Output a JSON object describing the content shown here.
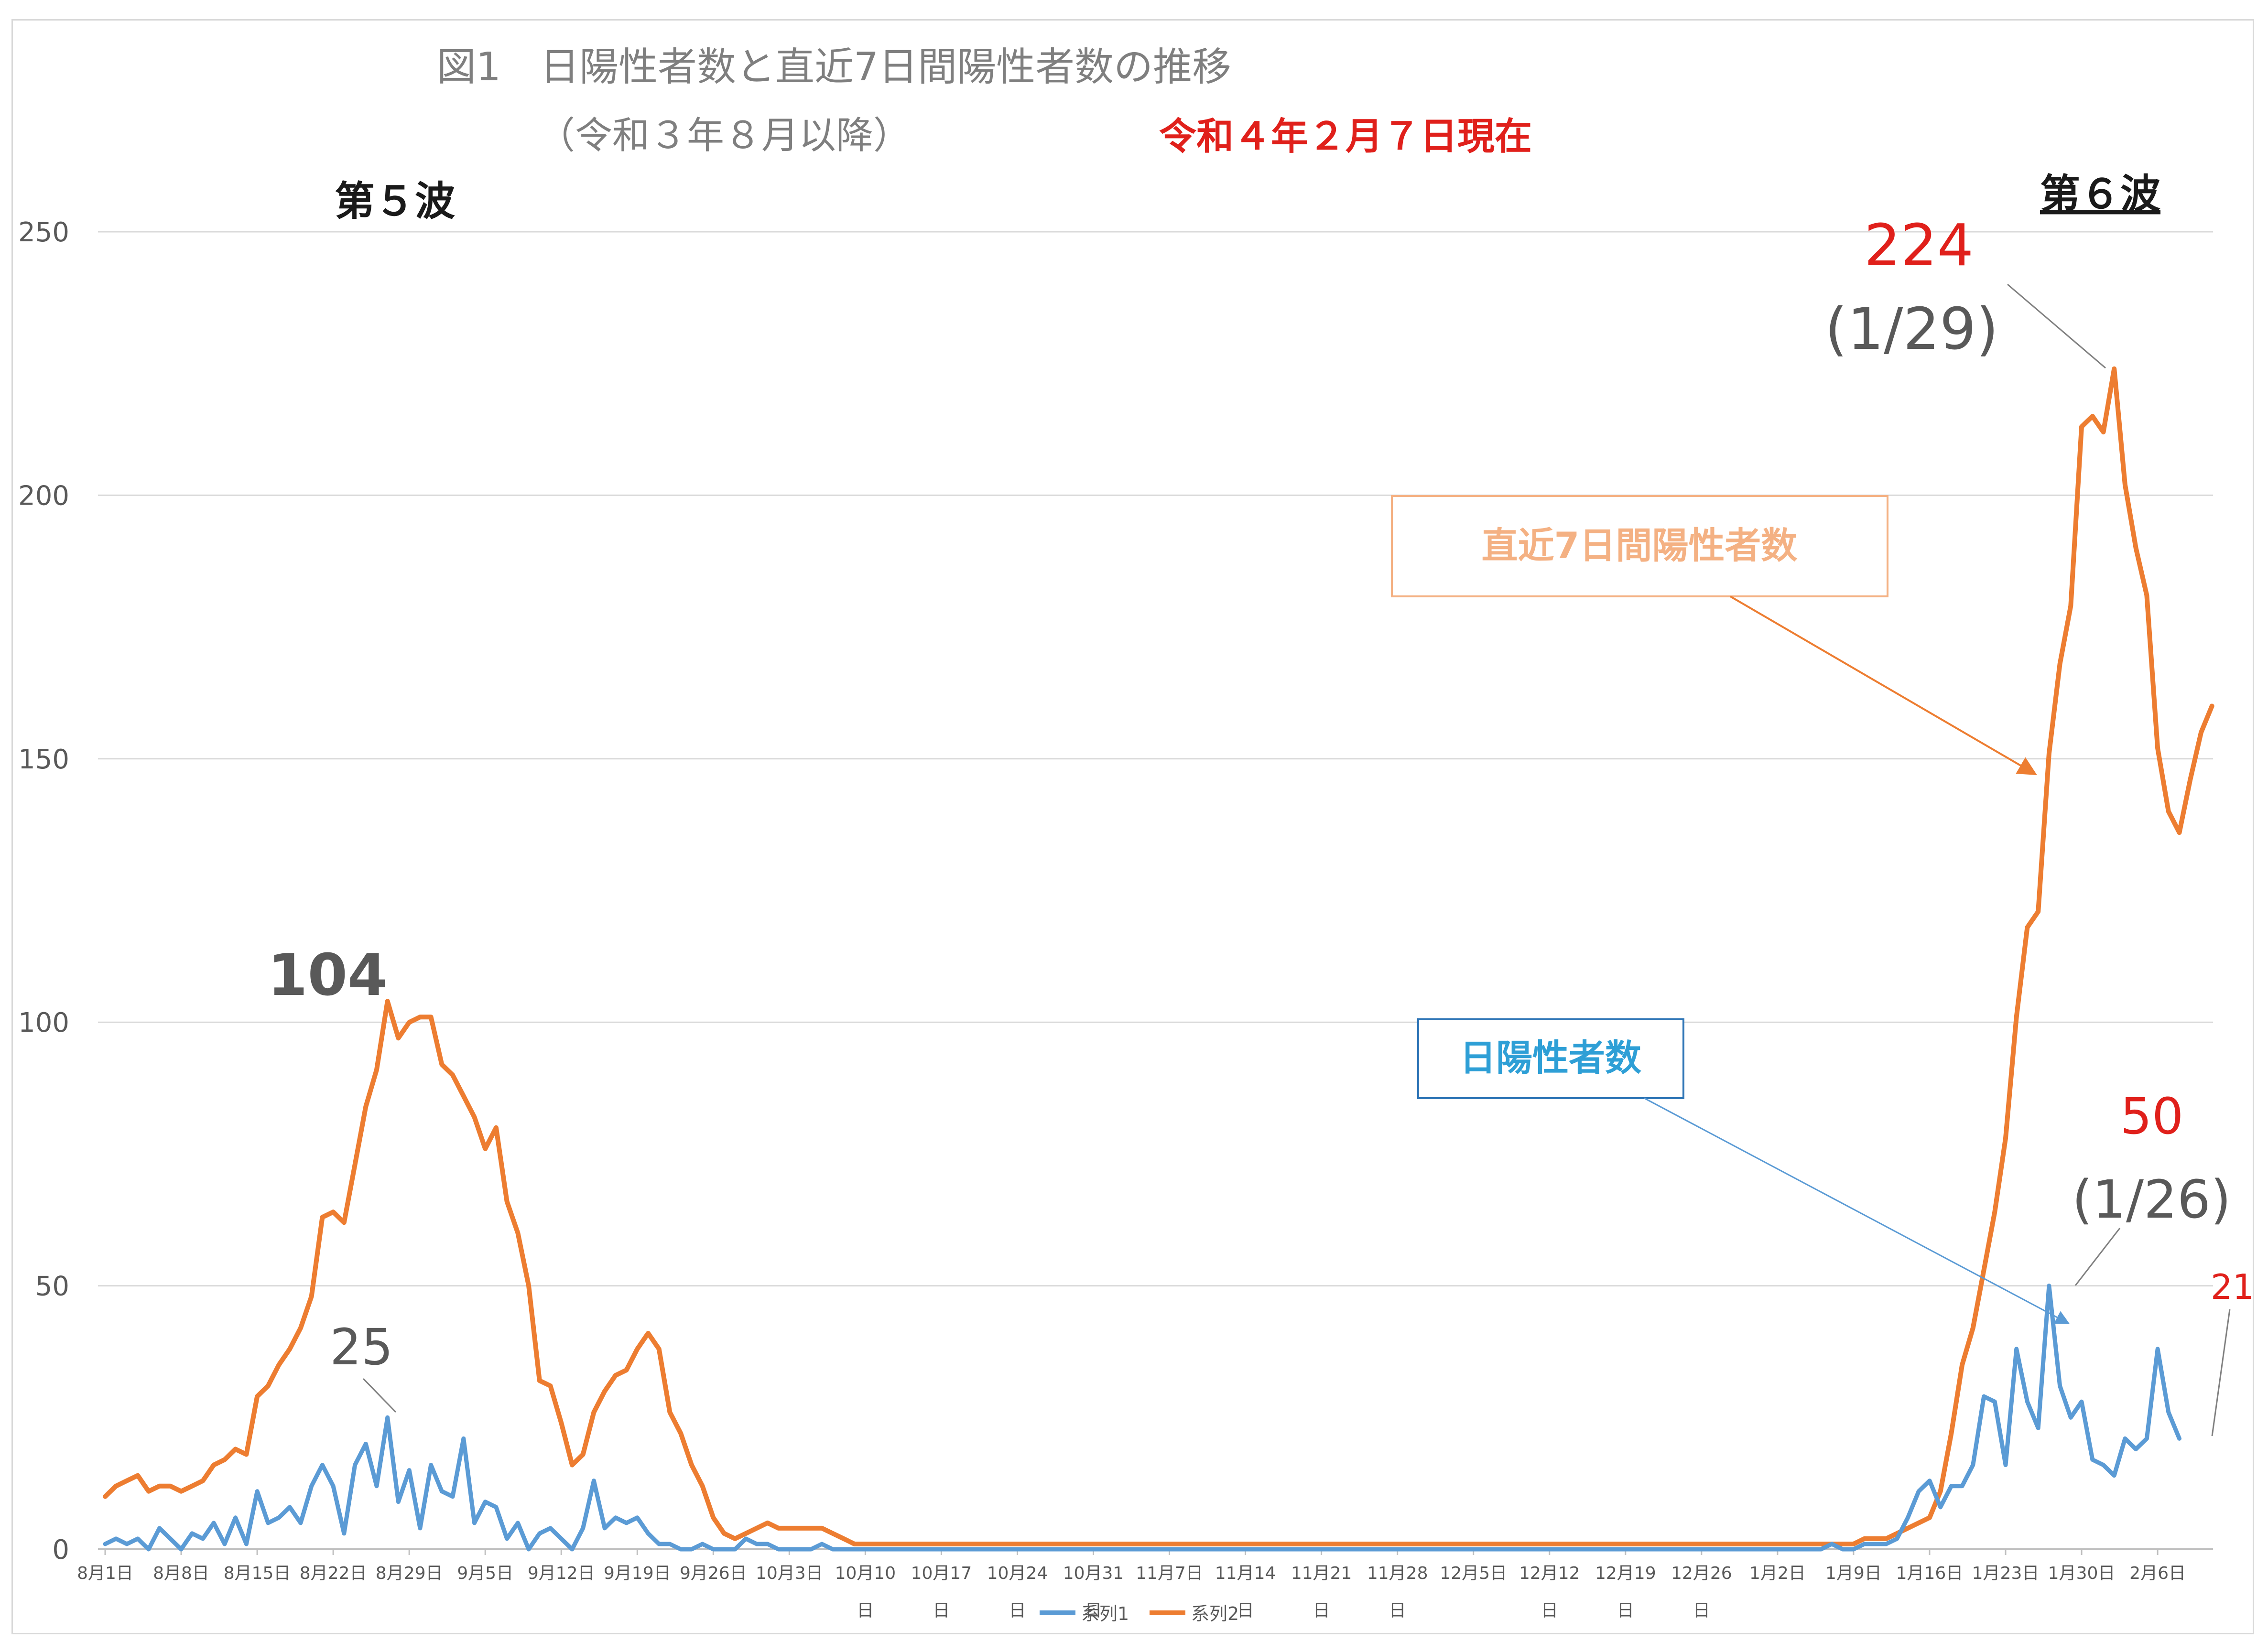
{
  "chart_data": {
    "type": "line",
    "title": "図1　日陽性者数と直近7日間陽性者数の推移",
    "subtitle": "（令和３年８月以降）",
    "date_note": "令和４年２月７日現在",
    "ylim": [
      0,
      250
    ],
    "yticks": [
      "0",
      "50",
      "100",
      "150",
      "200",
      "250"
    ],
    "grid": true,
    "legend_position": "bottom",
    "x_start_label": "8月1日",
    "x_tick_labels": [
      "8月1日",
      "8月8日",
      "8月15日",
      "8月22日",
      "8月29日",
      "9月5日",
      "9月12日",
      "9月19日",
      "9月26日",
      "10月3日",
      "10月10日",
      "10月17日",
      "10月24日",
      "10月31日",
      "11月7日",
      "11月14日",
      "11月21日",
      "11月28日",
      "12月5日",
      "12月12日",
      "12月19日",
      "12月26日",
      "1月2日",
      "1月9日",
      "1月16日",
      "1月23日",
      "1月30日",
      "2月6日"
    ],
    "series": [
      {
        "name": "系列1",
        "label": "日陽性者数",
        "color": "#5b9bd5",
        "values": [
          1,
          2,
          1,
          2,
          0,
          4,
          2,
          0,
          3,
          2,
          5,
          1,
          6,
          1,
          11,
          5,
          6,
          8,
          5,
          12,
          16,
          12,
          3,
          16,
          20,
          12,
          25,
          9,
          15,
          4,
          16,
          11,
          10,
          21,
          5,
          9,
          8,
          2,
          5,
          0,
          3,
          4,
          2,
          0,
          4,
          13,
          4,
          6,
          5,
          6,
          3,
          1,
          1,
          0,
          0,
          1,
          0,
          0,
          0,
          2,
          1,
          1,
          0,
          0,
          0,
          0,
          1,
          0,
          0,
          0,
          0,
          0,
          0,
          0,
          0,
          0,
          0,
          0,
          0,
          0,
          0,
          0,
          0,
          0,
          0,
          0,
          0,
          0,
          0,
          0,
          0,
          0,
          0,
          0,
          0,
          0,
          0,
          0,
          0,
          0,
          0,
          0,
          0,
          0,
          0,
          0,
          0,
          0,
          0,
          0,
          0,
          0,
          0,
          0,
          0,
          0,
          0,
          0,
          0,
          0,
          0,
          0,
          0,
          0,
          0,
          0,
          0,
          0,
          0,
          0,
          0,
          0,
          0,
          0,
          0,
          0,
          0,
          0,
          0,
          0,
          0,
          0,
          0,
          0,
          0,
          0,
          0,
          0,
          0,
          0,
          0,
          0,
          0,
          0,
          0,
          0,
          0,
          0,
          0,
          1,
          0,
          0,
          1,
          1,
          1,
          2,
          6,
          11,
          13,
          8,
          12,
          12,
          16,
          29,
          28,
          16,
          38,
          28,
          23,
          50,
          31,
          25,
          28,
          17,
          16,
          14,
          21,
          19,
          21,
          38,
          26,
          21
        ]
      },
      {
        "name": "系列2",
        "label": "直近7日間陽性者数",
        "color": "#ed7d31",
        "values": [
          10,
          12,
          13,
          14,
          11,
          12,
          12,
          11,
          12,
          13,
          16,
          17,
          19,
          18,
          29,
          31,
          35,
          38,
          42,
          48,
          63,
          64,
          62,
          73,
          84,
          91,
          104,
          97,
          100,
          101,
          101,
          92,
          90,
          86,
          82,
          76,
          80,
          66,
          60,
          50,
          32,
          31,
          24,
          16,
          18,
          26,
          30,
          33,
          34,
          38,
          41,
          38,
          26,
          22,
          16,
          12,
          6,
          3,
          2,
          3,
          4,
          5,
          4,
          4,
          4,
          4,
          4,
          3,
          2,
          1,
          1,
          1,
          1,
          1,
          1,
          1,
          1,
          1,
          1,
          1,
          1,
          1,
          1,
          1,
          1,
          1,
          1,
          1,
          1,
          1,
          1,
          1,
          1,
          1,
          1,
          1,
          1,
          1,
          1,
          1,
          1,
          1,
          1,
          1,
          1,
          1,
          1,
          1,
          1,
          1,
          1,
          1,
          1,
          1,
          1,
          1,
          1,
          1,
          1,
          1,
          1,
          1,
          1,
          1,
          1,
          1,
          1,
          1,
          1,
          1,
          1,
          1,
          1,
          1,
          1,
          1,
          1,
          1,
          1,
          1,
          1,
          1,
          1,
          1,
          1,
          1,
          1,
          1,
          1,
          1,
          1,
          1,
          1,
          1,
          1,
          1,
          1,
          1,
          1,
          1,
          1,
          1,
          2,
          2,
          2,
          3,
          4,
          5,
          6,
          11,
          22,
          35,
          42,
          53,
          64,
          78,
          101,
          118,
          121,
          151,
          168,
          179,
          213,
          215,
          212,
          224,
          202,
          190,
          181,
          152,
          140,
          136,
          146,
          155,
          160
        ]
      }
    ],
    "annotations": {
      "wave5": "第５波",
      "wave6": "第６波",
      "peak5_weekly": "104",
      "peak5_daily": "25",
      "peak6_weekly": "224",
      "peak6_weekly_date": "(1/29)",
      "peak6_daily": "50",
      "peak6_daily_date": "(1/26)",
      "last_daily": "21",
      "box_weekly": "直近7日間陽性者数",
      "box_daily": "日陽性者数"
    }
  }
}
